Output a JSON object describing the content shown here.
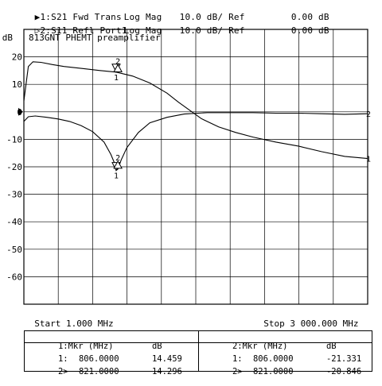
{
  "header": {
    "traces": [
      {
        "marker": "▶1:",
        "name": "S21 Fwd Trans",
        "format": "Log Mag",
        "scale": "10.0 dB/",
        "ref_label": "Ref",
        "ref_value": "0.00 dB"
      },
      {
        "marker": "▷2:",
        "name": "S11 Refl Port1",
        "format": "Log Mag",
        "scale": "10.0 dB/",
        "ref_label": "Ref",
        "ref_value": "0.00 dB"
      }
    ]
  },
  "colors": {
    "background": "#ffffff",
    "grid": "#000000",
    "trace": "#000000"
  },
  "chart_data": {
    "type": "line",
    "title": "813GNT PHEMT preamplifier",
    "ylabel": "dB",
    "xlabel": "",
    "x_unit": "MHz",
    "xlim": [
      1.0,
      3000.0
    ],
    "ylim": [
      -70,
      30
    ],
    "y_ticks": [
      "20",
      "10",
      "0",
      "-10",
      "-20",
      "-30",
      "-40",
      "-50",
      "-60"
    ],
    "y_tick_values": [
      20,
      10,
      0,
      -10,
      -20,
      -30,
      -40,
      -50,
      -60
    ],
    "reference_level": 0,
    "grid": true,
    "series": [
      {
        "name": "1",
        "x": [
          1,
          40,
          80,
          150,
          250,
          350,
          500,
          650,
          806,
          950,
          1100,
          1250,
          1350,
          1450,
          1550,
          1700,
          1850,
          2000,
          2200,
          2400,
          2600,
          2800,
          3000
        ],
        "y": [
          4,
          16.5,
          18.2,
          18.0,
          17.2,
          16.5,
          15.8,
          15.1,
          14.46,
          13.0,
          10.5,
          6.8,
          3.5,
          0.5,
          -2.5,
          -5.5,
          -7.5,
          -9.2,
          -11.0,
          -12.5,
          -14.5,
          -16.2,
          -17.0
        ]
      },
      {
        "name": "2",
        "x": [
          1,
          40,
          100,
          200,
          300,
          400,
          500,
          600,
          700,
          760,
          800,
          806,
          821,
          850,
          900,
          1000,
          1100,
          1250,
          1400,
          1600,
          1800,
          2000,
          2200,
          2400,
          2600,
          2800,
          3000
        ],
        "y": [
          -3.5,
          -1.8,
          -1.5,
          -2.0,
          -2.6,
          -3.5,
          -5.0,
          -7.2,
          -11.0,
          -15.5,
          -19.5,
          -21.33,
          -20.85,
          -17.5,
          -13.0,
          -7.5,
          -4.0,
          -2.0,
          -0.8,
          -0.3,
          -0.3,
          -0.3,
          -0.5,
          -0.5,
          -0.7,
          -0.9,
          -0.7
        ]
      }
    ],
    "marker_points": [
      {
        "label": "1",
        "x": 806.0,
        "y": 14.459
      },
      {
        "label": "2",
        "x": 821.0,
        "y": 14.296
      },
      {
        "label": "1",
        "x": 806.0,
        "y": -21.331
      },
      {
        "label": "2",
        "x": 821.0,
        "y": -20.846
      }
    ],
    "trace_end_labels": [
      "2",
      "1"
    ],
    "start_label": "Start",
    "start_value": "1.000 MHz",
    "stop_label": "Stop",
    "stop_value": "3 000.000 MHz"
  },
  "marker_table": {
    "left": {
      "header_label": "1:Mkr (MHz)",
      "header_unit": "dB",
      "rows": [
        {
          "label": "1:",
          "freq": "806.0000",
          "value": "14.459"
        },
        {
          "label": "2>",
          "freq": "821.0000",
          "value": "14.296"
        }
      ]
    },
    "right": {
      "header_label": "2:Mkr (MHz)",
      "header_unit": "dB",
      "rows": [
        {
          "label": "1:",
          "freq": "806.0000",
          "value": "-21.331"
        },
        {
          "label": "2>",
          "freq": "821.0000",
          "value": "-20.846"
        }
      ]
    }
  }
}
